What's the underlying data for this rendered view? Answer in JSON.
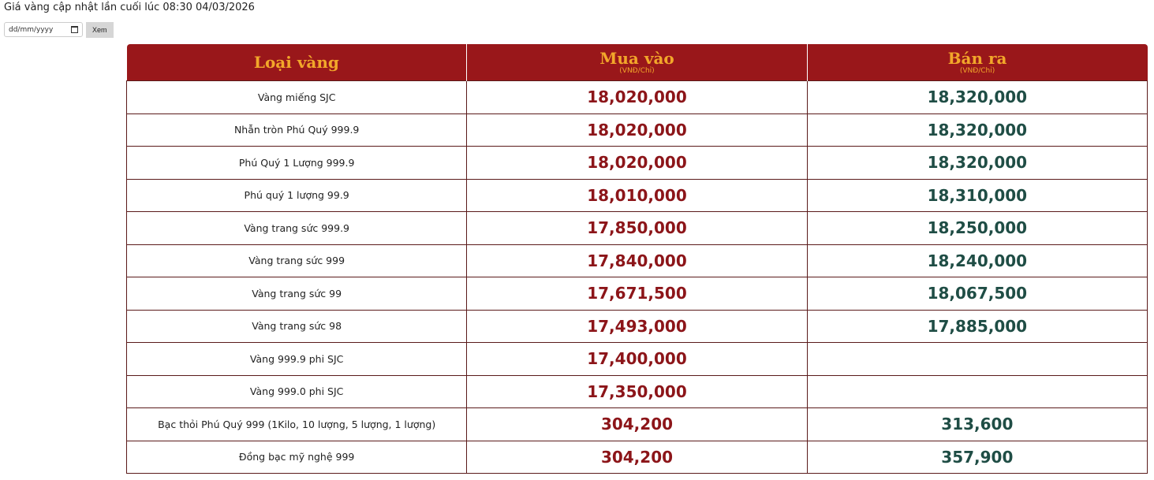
{
  "header": {
    "updated_text": "Giá vàng cập nhật lần cuối lúc 08:30 04/03/2026"
  },
  "form": {
    "date_placeholder": "dd/mm/yyyy",
    "submit_label": "Xem"
  },
  "table": {
    "columns": [
      {
        "title": "Loại vàng",
        "unit": ""
      },
      {
        "title": "Mua vào",
        "unit": "(VNĐ/Chỉ)"
      },
      {
        "title": "Bán ra",
        "unit": "(VNĐ/Chỉ)"
      }
    ],
    "rows": [
      {
        "name": "Vàng miếng SJC",
        "buy": "18,020,000",
        "sell": "18,320,000"
      },
      {
        "name": "Nhẫn tròn Phú Quý 999.9",
        "buy": "18,020,000",
        "sell": "18,320,000"
      },
      {
        "name": "Phú Quý 1 Lượng 999.9",
        "buy": "18,020,000",
        "sell": "18,320,000"
      },
      {
        "name": "Phú quý 1 lượng 99.9",
        "buy": "18,010,000",
        "sell": "18,310,000"
      },
      {
        "name": "Vàng trang sức 999.9",
        "buy": "17,850,000",
        "sell": "18,250,000"
      },
      {
        "name": "Vàng trang sức 999",
        "buy": "17,840,000",
        "sell": "18,240,000"
      },
      {
        "name": "Vàng trang sức 99",
        "buy": "17,671,500",
        "sell": "18,067,500"
      },
      {
        "name": "Vàng trang sức 98",
        "buy": "17,493,000",
        "sell": "17,885,000"
      },
      {
        "name": "Vàng 999.9 phi SJC",
        "buy": "17,400,000",
        "sell": ""
      },
      {
        "name": "Vàng 999.0 phi SJC",
        "buy": "17,350,000",
        "sell": ""
      },
      {
        "name": "Bạc thỏi Phú Quý 999 (1Kilo, 10 lượng, 5 lượng, 1 lượng)",
        "buy": "304,200",
        "sell": "313,600"
      },
      {
        "name": "Đồng bạc mỹ nghệ 999",
        "buy": "304,200",
        "sell": "357,900"
      }
    ]
  },
  "colors": {
    "header_bg": "#99171a",
    "header_text": "#f2a72a",
    "buy": "#8c1519",
    "sell": "#1f4d45"
  }
}
